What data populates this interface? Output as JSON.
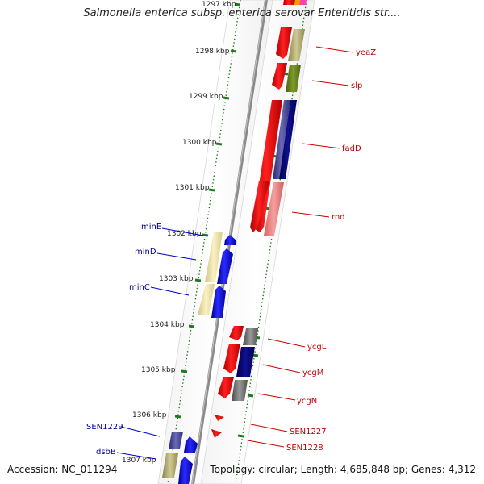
{
  "title": "Salmonella enterica subsp. enterica serovar Enteritidis str....",
  "accession": "Accession: NC_011294",
  "topology": "Topology: circular; Length: 4,685,848 bp; Genes: 4,312",
  "scale_labels": [
    "1297 kbp",
    "1298 kbp",
    "1299 kbp",
    "1300 kbp",
    "1301 kbp",
    "1302 kbp",
    "1303 kbp",
    "1304 kbp",
    "1305 kbp",
    "1306 kbp",
    "1307 kbp"
  ],
  "right_genes": [
    "yeaZ",
    "slp",
    "fadD",
    "rnd",
    "ycgL",
    "ycgM",
    "ycgN",
    "SEN1227",
    "SEN1228"
  ],
  "left_genes": [
    "minE",
    "minD",
    "minC",
    "SEN1229",
    "dsbB"
  ],
  "colors": {
    "red": "#ee0000",
    "red_label": "#c00000",
    "blue": "#0000ee",
    "blue_label": "#000090",
    "tick_green": "#1f7a1f",
    "backbone": "#8a8a8a"
  }
}
